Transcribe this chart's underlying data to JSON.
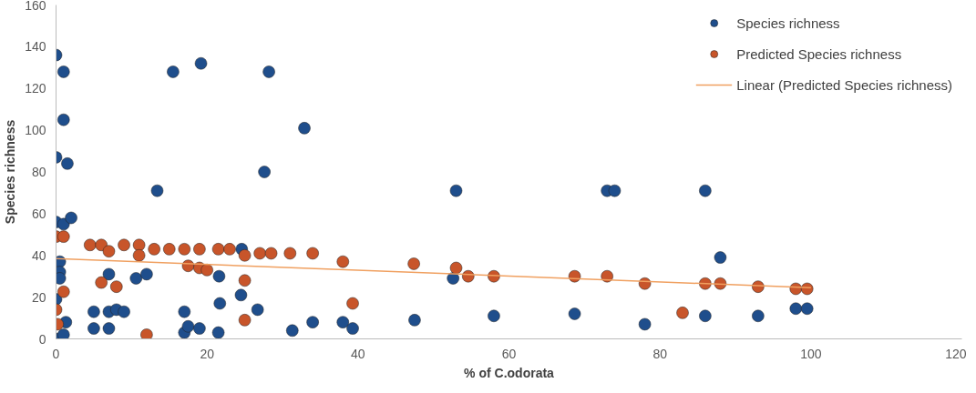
{
  "chart_data": {
    "type": "scatter",
    "xlabel": "% of C.odorata",
    "ylabel": "Species richness",
    "xlim": [
      0,
      120
    ],
    "ylim": [
      0,
      160
    ],
    "xticks": [
      0,
      20,
      40,
      60,
      80,
      100,
      120
    ],
    "yticks": [
      0,
      20,
      40,
      60,
      80,
      100,
      120,
      140,
      160
    ],
    "grid": false,
    "legend": "top right",
    "marker": "circle",
    "series": [
      {
        "name": "Species richness",
        "color": "#1f4e8c",
        "x": [
          0,
          1,
          1,
          0,
          1.5,
          0,
          1,
          2,
          0.5,
          0.5,
          0.5,
          0,
          1.3,
          0,
          1,
          13.4,
          15.5,
          19.2,
          28.2,
          27.6,
          32.9,
          53,
          73,
          74,
          86,
          88,
          5,
          7,
          5,
          7,
          8,
          9,
          7,
          10.6,
          12,
          17,
          17,
          17.5,
          19,
          21.5,
          21.7,
          21.6,
          24.5,
          24.6,
          26.7,
          31.3,
          34,
          38,
          39.3,
          47.5,
          52.6,
          58,
          68.7,
          78,
          86,
          93,
          98,
          99.5
        ],
        "values": [
          136,
          128,
          105,
          87,
          84,
          56,
          55,
          58,
          37,
          32,
          29,
          19,
          8,
          0,
          2,
          71,
          128,
          132,
          128,
          80,
          101,
          71,
          71,
          71,
          71,
          39,
          5,
          5,
          13,
          13,
          14,
          13,
          31,
          29,
          31,
          13,
          3,
          6,
          5,
          3,
          17,
          30,
          21,
          43,
          14,
          4,
          8,
          8,
          5,
          9,
          29,
          11,
          12,
          7,
          11,
          11,
          14.5,
          14.5
        ]
      },
      {
        "name": "Predicted Species richness",
        "color": "#c8552a",
        "x": [
          0,
          1,
          1,
          0,
          0.2,
          4.5,
          6,
          7,
          9,
          11,
          11,
          13,
          15,
          17,
          17.5,
          19,
          19,
          20,
          21.5,
          23,
          25,
          25,
          27,
          28.5,
          31,
          34,
          6,
          8,
          12,
          25,
          38,
          39.3,
          47.4,
          53,
          54.6,
          58,
          68.7,
          73,
          78,
          83,
          86,
          88,
          93,
          98,
          99.5
        ],
        "values": [
          49,
          49,
          22.6,
          14,
          7,
          45,
          45,
          42,
          45,
          45,
          40,
          43,
          43,
          43,
          35,
          43,
          34,
          33,
          43,
          43,
          40,
          28,
          41,
          41,
          41,
          41,
          27,
          25,
          2,
          9,
          37,
          17,
          36,
          34,
          30,
          30,
          30,
          30,
          26.5,
          12.5,
          26.5,
          26.5,
          25,
          24,
          24
        ]
      },
      {
        "name": "Linear (Predicted Species richness)",
        "type": "line",
        "color": "#f0a060",
        "marker": "none",
        "x": [
          0,
          100
        ],
        "values": [
          38.5,
          24.5
        ]
      }
    ]
  }
}
